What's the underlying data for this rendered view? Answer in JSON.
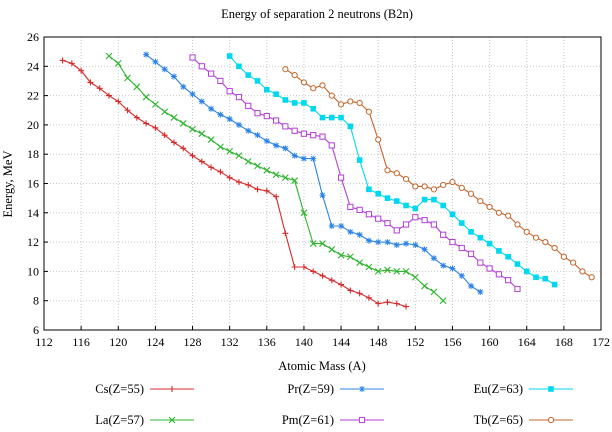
{
  "chart_data": {
    "type": "line",
    "title": "Energy of separation 2 neutrons (B2n)",
    "xlabel": "Atomic Mass (A)",
    "ylabel": "Energy, MeV",
    "xlim": [
      112,
      172
    ],
    "ylim": [
      6,
      26
    ],
    "xticks": [
      112,
      116,
      120,
      124,
      128,
      132,
      136,
      140,
      144,
      148,
      152,
      156,
      160,
      164,
      168,
      172
    ],
    "yticks": [
      6,
      8,
      10,
      12,
      14,
      16,
      18,
      20,
      22,
      24,
      26
    ],
    "grid": true,
    "legend_position": "bottom",
    "series": [
      {
        "name": "Cs(Z=55)",
        "color": "#d62a2a",
        "marker": "plus",
        "x": [
          114,
          115,
          116,
          117,
          118,
          119,
          120,
          121,
          122,
          123,
          124,
          125,
          126,
          127,
          128,
          129,
          130,
          131,
          132,
          133,
          134,
          135,
          136,
          137,
          138,
          139,
          140,
          141,
          142,
          143,
          144,
          145,
          146,
          147,
          148,
          149,
          150,
          151
        ],
        "y": [
          24.4,
          24.2,
          23.7,
          22.9,
          22.5,
          22.0,
          21.6,
          21.0,
          20.5,
          20.1,
          19.8,
          19.3,
          18.8,
          18.4,
          17.9,
          17.5,
          17.1,
          16.8,
          16.4,
          16.1,
          15.9,
          15.6,
          15.5,
          15.1,
          12.6,
          10.3,
          10.3,
          10.0,
          9.7,
          9.4,
          9.1,
          8.7,
          8.5,
          8.2,
          7.8,
          7.9,
          7.8,
          7.6
        ]
      },
      {
        "name": "La(Z=57)",
        "color": "#2fb52f",
        "marker": "x",
        "x": [
          119,
          120,
          121,
          122,
          123,
          124,
          125,
          126,
          127,
          128,
          129,
          130,
          131,
          132,
          133,
          134,
          135,
          136,
          137,
          138,
          139,
          140,
          141,
          142,
          143,
          144,
          145,
          146,
          147,
          148,
          149,
          150,
          151,
          152,
          153,
          154,
          155
        ],
        "y": [
          24.7,
          24.2,
          23.2,
          22.6,
          21.9,
          21.4,
          20.9,
          20.5,
          20.1,
          19.7,
          19.4,
          19.0,
          18.5,
          18.2,
          17.9,
          17.5,
          17.2,
          16.9,
          16.6,
          16.4,
          16.2,
          14.0,
          11.9,
          11.9,
          11.5,
          11.1,
          11.0,
          10.6,
          10.3,
          10.0,
          10.1,
          10.0,
          10.0,
          9.6,
          9.0,
          8.6,
          8.0
        ]
      },
      {
        "name": "Pr(Z=59)",
        "color": "#2c83e6",
        "marker": "star",
        "x": [
          123,
          124,
          125,
          126,
          127,
          128,
          129,
          130,
          131,
          132,
          133,
          134,
          135,
          136,
          137,
          138,
          139,
          140,
          141,
          142,
          143,
          144,
          145,
          146,
          147,
          148,
          149,
          150,
          151,
          152,
          153,
          154,
          155,
          156,
          157,
          158,
          159
        ],
        "y": [
          24.8,
          24.3,
          23.8,
          23.3,
          22.6,
          22.1,
          21.6,
          21.1,
          20.7,
          20.4,
          20.0,
          19.6,
          19.3,
          18.9,
          18.6,
          18.4,
          17.9,
          17.7,
          17.7,
          15.2,
          13.1,
          13.1,
          12.7,
          12.5,
          12.1,
          12.0,
          12.0,
          11.8,
          11.9,
          11.8,
          11.5,
          10.9,
          10.4,
          10.2,
          9.7,
          9.0,
          8.6
        ]
      },
      {
        "name": "Pm(Z=61)",
        "color": "#b43fd6",
        "marker": "square-open",
        "x": [
          128,
          129,
          130,
          131,
          132,
          133,
          134,
          135,
          136,
          137,
          138,
          139,
          140,
          141,
          142,
          143,
          144,
          145,
          146,
          147,
          148,
          149,
          150,
          151,
          152,
          153,
          154,
          155,
          156,
          157,
          158,
          159,
          160,
          161,
          162,
          163
        ],
        "y": [
          24.6,
          24.0,
          23.5,
          23.0,
          22.3,
          21.9,
          21.3,
          20.8,
          20.6,
          20.3,
          19.9,
          19.6,
          19.4,
          19.3,
          19.2,
          18.6,
          16.4,
          14.4,
          14.2,
          13.9,
          13.6,
          13.3,
          12.8,
          13.2,
          13.7,
          13.5,
          13.2,
          12.5,
          12.0,
          11.6,
          11.2,
          10.6,
          10.2,
          9.8,
          9.4,
          8.8
        ]
      },
      {
        "name": "Eu(Z=63)",
        "color": "#00d8f0",
        "marker": "square-filled",
        "x": [
          132,
          133,
          134,
          135,
          136,
          137,
          138,
          139,
          140,
          141,
          142,
          143,
          144,
          145,
          146,
          147,
          148,
          149,
          150,
          151,
          152,
          153,
          154,
          155,
          156,
          157,
          158,
          159,
          160,
          161,
          162,
          163,
          164,
          165,
          166,
          167
        ],
        "y": [
          24.7,
          24.0,
          23.4,
          23.0,
          22.4,
          22.1,
          21.7,
          21.5,
          21.5,
          21.1,
          20.5,
          20.5,
          20.5,
          19.9,
          17.6,
          15.6,
          15.3,
          15.0,
          14.8,
          14.5,
          14.3,
          14.9,
          14.9,
          14.5,
          13.9,
          13.3,
          12.7,
          12.3,
          11.9,
          11.4,
          11.0,
          10.5,
          10.0,
          9.6,
          9.5,
          9.1
        ]
      },
      {
        "name": "Tb(Z=65)",
        "color": "#c4652a",
        "marker": "circle",
        "x": [
          138,
          139,
          140,
          141,
          142,
          143,
          144,
          145,
          146,
          147,
          148,
          149,
          150,
          151,
          152,
          153,
          154,
          155,
          156,
          157,
          158,
          159,
          160,
          161,
          162,
          163,
          164,
          165,
          166,
          167,
          168,
          169,
          170,
          171
        ],
        "y": [
          23.8,
          23.4,
          22.9,
          22.5,
          22.7,
          22.0,
          21.4,
          21.6,
          21.5,
          20.9,
          19.0,
          16.9,
          16.7,
          16.3,
          15.8,
          15.8,
          15.6,
          15.9,
          16.1,
          15.7,
          15.3,
          14.8,
          14.4,
          14.0,
          13.8,
          13.2,
          12.7,
          12.3,
          12.0,
          11.6,
          11.0,
          10.6,
          10.0,
          9.6
        ]
      }
    ]
  }
}
